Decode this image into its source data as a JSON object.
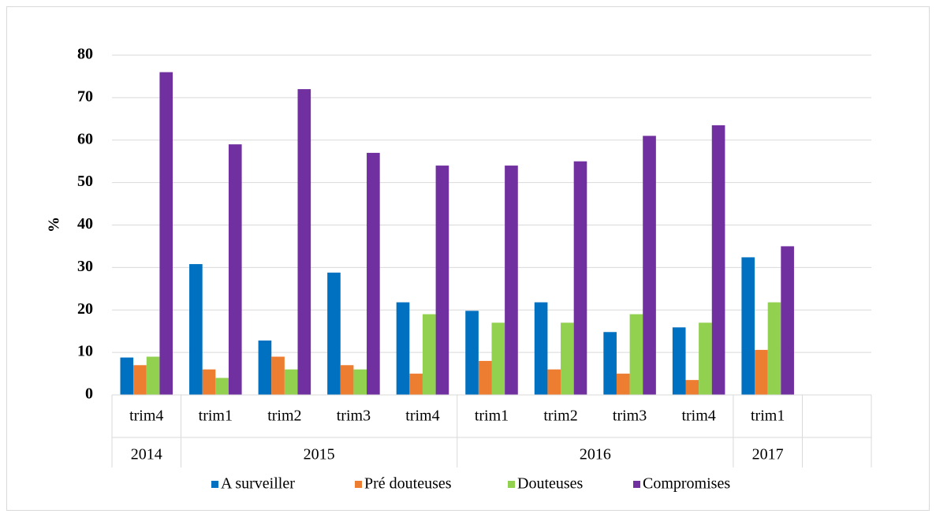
{
  "chart_data": {
    "type": "bar",
    "y_label": "%",
    "categories": [
      "trim4",
      "trim1",
      "trim2",
      "trim3",
      "trim4",
      "trim1",
      "trim2",
      "trim3",
      "trim4",
      "trim1",
      null
    ],
    "groups": [
      {
        "label": "2014",
        "count": 1
      },
      {
        "label": "2015",
        "count": 4
      },
      {
        "label": "2016",
        "count": 4
      },
      {
        "label": "2017",
        "count": 1
      }
    ],
    "series": [
      {
        "name": "A surveiller",
        "color": "#0070c0",
        "values": [
          8.8,
          30.8,
          12.8,
          28.8,
          21.8,
          19.8,
          21.8,
          14.8,
          15.9,
          32.4,
          null
        ]
      },
      {
        "name": "Pré douteuses",
        "color": "#ed7d31",
        "values": [
          7,
          6,
          9,
          7,
          5,
          8,
          6,
          5,
          3.5,
          10.6,
          null
        ]
      },
      {
        "name": "Douteuses",
        "color": "#92d050",
        "values": [
          9,
          4,
          6,
          6,
          19,
          17,
          17,
          19,
          17,
          21.8,
          null
        ]
      },
      {
        "name": "Compromises",
        "color": "#7030a0",
        "values": [
          76,
          59,
          72,
          57,
          54,
          54,
          55,
          61,
          63.5,
          35,
          null
        ]
      }
    ],
    "ylim": [
      0,
      80
    ],
    "yticks": [
      0,
      10,
      20,
      30,
      40,
      50,
      60,
      70,
      80
    ],
    "grid": true,
    "legend": "bottom"
  }
}
